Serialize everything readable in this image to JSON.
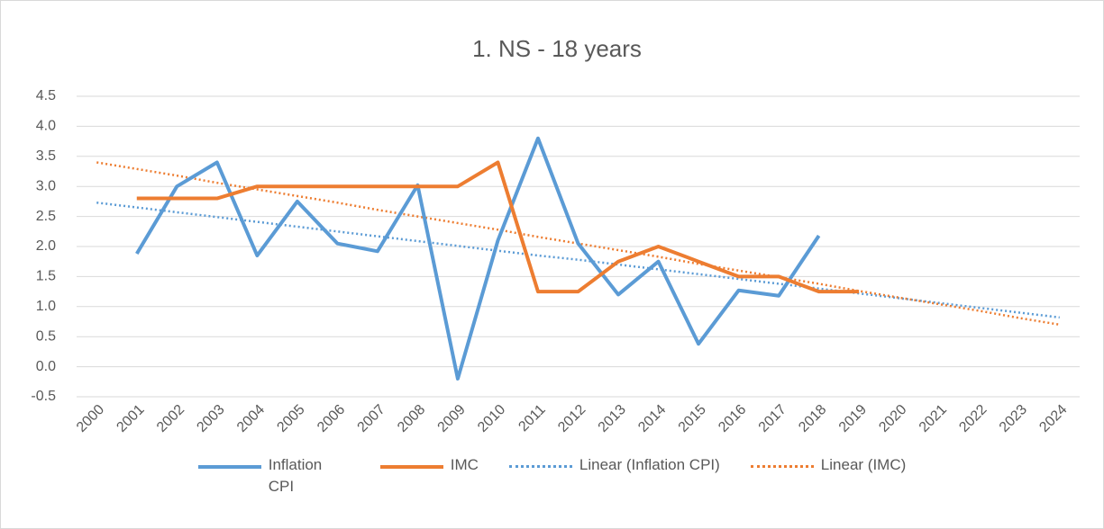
{
  "chart_data": {
    "type": "line",
    "title": "1. NS - 18 years",
    "categories": [
      "2000",
      "2001",
      "2002",
      "2003",
      "2004",
      "2005",
      "2006",
      "2007",
      "2008",
      "2009",
      "2010",
      "2011",
      "2012",
      "2013",
      "2014",
      "2015",
      "2016",
      "2017",
      "2018",
      "2019",
      "2020",
      "2021",
      "2022",
      "2023",
      "2024"
    ],
    "ylim": [
      -0.5,
      4.5
    ],
    "yticks": [
      -0.5,
      {
        "value": 0,
        "label": "0.0"
      },
      0.5,
      {
        "value": 1,
        "label": "1.0"
      },
      1.5,
      {
        "value": 2,
        "label": "2.0"
      },
      2.5,
      {
        "value": 3,
        "label": "3.0"
      },
      3.5,
      {
        "value": 4,
        "label": "4.0"
      },
      4.5
    ],
    "grid": true,
    "legend": "bottom",
    "series": [
      {
        "name": "Inflation CPI",
        "color": "#5b9bd5",
        "dotted": false,
        "values": [
          null,
          1.88,
          3.0,
          3.4,
          1.85,
          2.75,
          2.05,
          1.92,
          3.02,
          -0.2,
          2.1,
          3.8,
          2.05,
          1.2,
          1.75,
          0.38,
          1.27,
          1.18,
          2.18,
          null,
          null,
          null,
          null,
          null,
          null
        ]
      },
      {
        "name": "IMC",
        "color": "#ed7d31",
        "dotted": false,
        "values": [
          null,
          2.8,
          2.8,
          2.8,
          3.0,
          3.0,
          3.0,
          3.0,
          3.0,
          3.0,
          3.4,
          1.25,
          1.25,
          1.75,
          2.0,
          1.75,
          1.5,
          1.5,
          1.25,
          1.25,
          null,
          null,
          null,
          null,
          null
        ]
      },
      {
        "name": "Linear (Inflation CPI)",
        "color": "#5b9bd5",
        "dotted": true,
        "values": [
          2.73,
          2.65,
          2.57,
          2.49,
          2.41,
          2.33,
          2.25,
          2.17,
          2.09,
          2.01,
          1.93,
          1.85,
          1.78,
          1.7,
          1.62,
          1.54,
          1.46,
          1.38,
          1.3,
          1.22,
          1.14,
          1.06,
          0.98,
          0.9,
          0.82
        ]
      },
      {
        "name": "Linear (IMC)",
        "color": "#ed7d31",
        "dotted": true,
        "values": [
          3.4,
          3.29,
          3.18,
          3.06,
          2.95,
          2.84,
          2.73,
          2.61,
          2.5,
          2.39,
          2.28,
          2.16,
          2.05,
          1.94,
          1.83,
          1.71,
          1.6,
          1.49,
          1.38,
          1.26,
          1.15,
          1.04,
          0.93,
          0.81,
          0.7
        ]
      }
    ]
  }
}
